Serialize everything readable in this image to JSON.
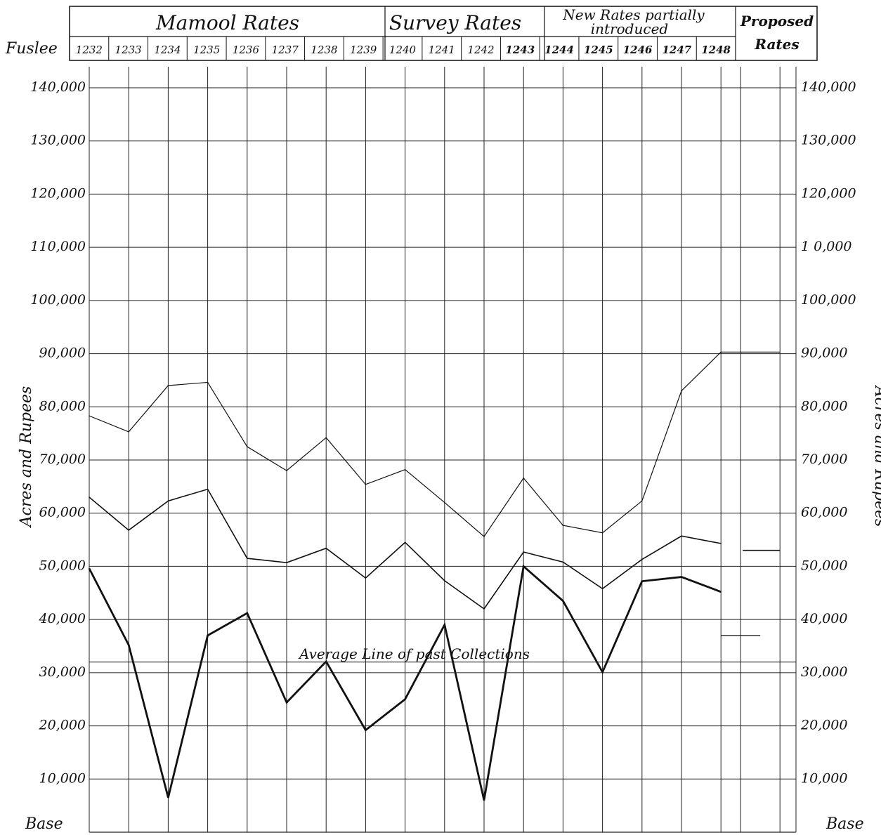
{
  "chart_data": {
    "type": "line",
    "header": {
      "row_label": "Fuslee",
      "bands": [
        {
          "label": "Mamool Rates",
          "from": "1232",
          "to": "1239"
        },
        {
          "label": "Survey Rates",
          "from": "1240",
          "to": "1243"
        },
        {
          "label_line1": "New Rates partially",
          "label_line2": "introduced",
          "from": "1244",
          "to": "1248"
        },
        {
          "label_line1": "Proposed",
          "label_line2": "Rates"
        }
      ]
    },
    "x": [
      "1232",
      "1233",
      "1234",
      "1235",
      "1236",
      "1237",
      "1238",
      "1239",
      "1240",
      "1241",
      "1242",
      "1243",
      "1244",
      "1245",
      "1246",
      "1247",
      "1248"
    ],
    "y_ticks_left": [
      "140,000",
      "130,000",
      "120,000",
      "110,000",
      "100,000",
      "90,000",
      "80,000",
      "70,000",
      "60,000",
      "50,000",
      "40,000",
      "30,000",
      "20,000",
      "10,000"
    ],
    "y_ticks_right": [
      "140,000",
      "130,000",
      "120,000",
      "1 0,000",
      "100,000",
      "90,000",
      "80,000",
      "70,000",
      "60,000",
      "50,000",
      "40,000",
      "30,000",
      "20,000",
      "10,000"
    ],
    "y_tick_values": [
      140000,
      130000,
      120000,
      110000,
      100000,
      90000,
      80000,
      70000,
      60000,
      50000,
      40000,
      30000,
      20000,
      10000
    ],
    "ylabel": "Acres and Rupees",
    "base_label": "Base",
    "ylim": [
      0,
      140000
    ],
    "grid": true,
    "series": [
      {
        "values": [
          78300,
          75300,
          84000,
          84600,
          72500,
          68000,
          74200,
          65400,
          68200,
          62000,
          55600,
          66600,
          57700,
          56300,
          62300,
          83000,
          90300
        ],
        "proposed": 90300,
        "stroke": 1.2
      },
      {
        "values": [
          63000,
          56800,
          62300,
          64500,
          51500,
          50700,
          53400,
          47800,
          54500,
          47300,
          42000,
          52700,
          50800,
          45800,
          51300,
          55700,
          54300
        ],
        "proposed": 53000,
        "stroke": 1.6
      },
      {
        "values": [
          49600,
          35200,
          6500,
          37000,
          41200,
          24400,
          32100,
          19200,
          25000,
          39000,
          6000,
          50000,
          43500,
          30100,
          47200,
          48000,
          45200
        ],
        "proposed": null,
        "stroke": 2.8
      }
    ],
    "average_line": {
      "label": "Average Line of past Collections",
      "value": 32000
    },
    "extra_marks": [
      {
        "value": 37000,
        "at": "1248"
      }
    ]
  }
}
